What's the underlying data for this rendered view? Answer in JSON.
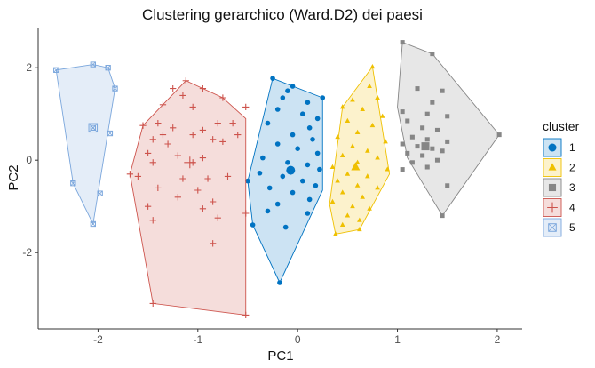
{
  "chart_data": {
    "type": "scatter",
    "title": "Clustering gerarchico (Ward.D2) dei paesi",
    "xlabel": "PC1",
    "ylabel": "PC2",
    "xlim": [
      -2.6,
      2.25
    ],
    "ylim": [
      -3.65,
      2.85
    ],
    "xticks": [
      -2,
      -1,
      0,
      1,
      2
    ],
    "yticks": [
      -2,
      0,
      2
    ],
    "xtick_labels": [
      "-2",
      "-1",
      "0",
      "1",
      "2"
    ],
    "ytick_labels": [
      "-2",
      "0",
      "2"
    ],
    "grid": false,
    "legend_title": "cluster",
    "legend_position": "right",
    "series": [
      {
        "name": "1",
        "shape": "circle",
        "color": "#0073C2",
        "fill": "#0073C2",
        "hull": [
          [
            -0.25,
            1.77
          ],
          [
            0.25,
            1.35
          ],
          [
            0.25,
            -0.65
          ],
          [
            -0.18,
            -2.65
          ],
          [
            -0.45,
            -1.4
          ],
          [
            -0.5,
            -0.45
          ]
        ],
        "centroid": [
          -0.07,
          -0.22
        ],
        "points": [
          [
            -0.25,
            1.77
          ],
          [
            0.25,
            1.35
          ],
          [
            -0.1,
            1.5
          ],
          [
            -0.05,
            1.6
          ],
          [
            -0.15,
            1.35
          ],
          [
            0.1,
            1.25
          ],
          [
            -0.2,
            1.1
          ],
          [
            0.05,
            1.0
          ],
          [
            0.2,
            0.9
          ],
          [
            -0.3,
            0.8
          ],
          [
            0.12,
            0.7
          ],
          [
            -0.05,
            0.55
          ],
          [
            0.15,
            0.45
          ],
          [
            -0.2,
            0.35
          ],
          [
            0.0,
            0.25
          ],
          [
            0.2,
            0.15
          ],
          [
            -0.35,
            0.05
          ],
          [
            -0.1,
            -0.05
          ],
          [
            0.1,
            -0.1
          ],
          [
            0.22,
            -0.2
          ],
          [
            -0.38,
            -0.28
          ],
          [
            -0.15,
            -0.35
          ],
          [
            0.05,
            -0.45
          ],
          [
            0.18,
            -0.55
          ],
          [
            -0.28,
            -0.6
          ],
          [
            -0.05,
            -0.7
          ],
          [
            0.12,
            -0.85
          ],
          [
            -0.2,
            -0.95
          ],
          [
            -0.3,
            -1.1
          ],
          [
            0.1,
            -1.15
          ],
          [
            -0.12,
            -1.45
          ],
          [
            -0.45,
            -1.4
          ],
          [
            -0.5,
            -0.45
          ],
          [
            -0.18,
            -2.65
          ]
        ]
      },
      {
        "name": "2",
        "shape": "triangle",
        "color": "#EFC000",
        "fill": "#EFC000",
        "hull": [
          [
            0.75,
            2.02
          ],
          [
            0.92,
            -0.3
          ],
          [
            0.62,
            -1.5
          ],
          [
            0.38,
            -1.6
          ],
          [
            0.32,
            -0.95
          ],
          [
            0.45,
            1.15
          ]
        ],
        "centroid": [
          0.58,
          -0.15
        ],
        "points": [
          [
            0.75,
            2.02
          ],
          [
            0.72,
            1.6
          ],
          [
            0.8,
            1.35
          ],
          [
            0.55,
            1.3
          ],
          [
            0.65,
            1.1
          ],
          [
            0.45,
            1.15
          ],
          [
            0.85,
            0.95
          ],
          [
            0.5,
            0.85
          ],
          [
            0.75,
            0.75
          ],
          [
            0.6,
            0.6
          ],
          [
            0.4,
            0.5
          ],
          [
            0.88,
            0.4
          ],
          [
            0.55,
            0.3
          ],
          [
            0.7,
            0.2
          ],
          [
            0.45,
            0.1
          ],
          [
            0.8,
            0.05
          ],
          [
            0.6,
            -0.05
          ],
          [
            0.35,
            -0.15
          ],
          [
            0.9,
            -0.2
          ],
          [
            0.5,
            -0.3
          ],
          [
            0.7,
            -0.35
          ],
          [
            0.4,
            -0.45
          ],
          [
            0.6,
            -0.55
          ],
          [
            0.8,
            -0.6
          ],
          [
            0.45,
            -0.7
          ],
          [
            0.65,
            -0.8
          ],
          [
            0.35,
            -0.9
          ],
          [
            0.55,
            -1.0
          ],
          [
            0.72,
            -1.05
          ],
          [
            0.5,
            -1.2
          ],
          [
            0.62,
            -1.3
          ],
          [
            0.45,
            -1.4
          ],
          [
            0.38,
            -1.6
          ],
          [
            0.62,
            -1.5
          ]
        ]
      },
      {
        "name": "3",
        "shape": "square",
        "color": "#868686",
        "fill": "#868686",
        "hull": [
          [
            1.05,
            2.55
          ],
          [
            1.35,
            2.3
          ],
          [
            2.02,
            0.55
          ],
          [
            1.45,
            -1.2
          ],
          [
            1.1,
            0.05
          ],
          [
            1.0,
            1.15
          ]
        ],
        "centroid": [
          1.28,
          0.3
        ],
        "points": [
          [
            1.05,
            2.55
          ],
          [
            1.35,
            2.3
          ],
          [
            1.2,
            1.55
          ],
          [
            1.45,
            1.5
          ],
          [
            1.35,
            1.25
          ],
          [
            1.05,
            1.05
          ],
          [
            1.3,
            1.0
          ],
          [
            1.5,
            0.95
          ],
          [
            1.1,
            0.85
          ],
          [
            1.25,
            0.7
          ],
          [
            1.4,
            0.65
          ],
          [
            1.15,
            0.5
          ],
          [
            1.3,
            0.45
          ],
          [
            1.5,
            0.4
          ],
          [
            1.05,
            0.35
          ],
          [
            1.2,
            0.3
          ],
          [
            1.35,
            0.25
          ],
          [
            1.45,
            0.2
          ],
          [
            1.1,
            0.15
          ],
          [
            1.25,
            0.1
          ],
          [
            1.4,
            0.0
          ],
          [
            1.15,
            -0.05
          ],
          [
            1.3,
            -0.15
          ],
          [
            1.05,
            -0.2
          ],
          [
            1.5,
            -0.55
          ],
          [
            1.45,
            -1.2
          ],
          [
            2.02,
            0.55
          ]
        ]
      },
      {
        "name": "4",
        "shape": "plus",
        "color": "#CD534C",
        "fill": "#CD534C",
        "hull": [
          [
            -1.12,
            1.72
          ],
          [
            -0.75,
            1.35
          ],
          [
            -0.52,
            0.9
          ],
          [
            -0.52,
            -3.35
          ],
          [
            -1.45,
            -3.1
          ],
          [
            -1.68,
            -0.3
          ],
          [
            -1.55,
            0.75
          ]
        ],
        "centroid": [
          -1.08,
          -0.05
        ],
        "points": [
          [
            -1.12,
            1.72
          ],
          [
            -1.25,
            1.55
          ],
          [
            -0.95,
            1.55
          ],
          [
            -1.15,
            1.4
          ],
          [
            -0.75,
            1.35
          ],
          [
            -1.35,
            1.2
          ],
          [
            -1.05,
            1.15
          ],
          [
            -0.52,
            1.15
          ],
          [
            -1.55,
            0.75
          ],
          [
            -1.4,
            0.8
          ],
          [
            -0.8,
            0.8
          ],
          [
            -0.65,
            0.8
          ],
          [
            -1.25,
            0.7
          ],
          [
            -0.95,
            0.65
          ],
          [
            -1.35,
            0.55
          ],
          [
            -1.05,
            0.55
          ],
          [
            -0.6,
            0.55
          ],
          [
            -0.85,
            0.45
          ],
          [
            -1.45,
            0.45
          ],
          [
            -1.3,
            0.35
          ],
          [
            -0.75,
            0.4
          ],
          [
            -1.5,
            0.15
          ],
          [
            -1.2,
            0.1
          ],
          [
            -0.95,
            0.05
          ],
          [
            -1.05,
            -0.05
          ],
          [
            -1.45,
            -0.05
          ],
          [
            -1.68,
            -0.3
          ],
          [
            -1.6,
            -0.35
          ],
          [
            -1.15,
            -0.4
          ],
          [
            -0.9,
            -0.4
          ],
          [
            -0.7,
            -0.35
          ],
          [
            -1.4,
            -0.6
          ],
          [
            -1.0,
            -0.65
          ],
          [
            -1.2,
            -0.8
          ],
          [
            -0.85,
            -0.9
          ],
          [
            -1.5,
            -1.0
          ],
          [
            -0.95,
            -1.05
          ],
          [
            -0.52,
            -1.15
          ],
          [
            -0.8,
            -1.25
          ],
          [
            -1.45,
            -1.3
          ],
          [
            -0.85,
            -1.8
          ],
          [
            -1.45,
            -3.1
          ],
          [
            -0.52,
            -3.35
          ]
        ]
      },
      {
        "name": "5",
        "shape": "square-cross",
        "color": "#7AA6DC",
        "fill": "#7AA6DC",
        "hull": [
          [
            -2.05,
            2.07
          ],
          [
            -1.9,
            2.0
          ],
          [
            -1.83,
            1.55
          ],
          [
            -2.05,
            -1.38
          ],
          [
            -2.25,
            -0.5
          ],
          [
            -2.42,
            1.95
          ]
        ],
        "centroid": [
          -2.05,
          0.7
        ],
        "points": [
          [
            -2.05,
            2.07
          ],
          [
            -1.9,
            2.0
          ],
          [
            -2.42,
            1.95
          ],
          [
            -1.83,
            1.55
          ],
          [
            -2.05,
            0.7
          ],
          [
            -1.88,
            0.58
          ],
          [
            -2.25,
            -0.5
          ],
          [
            -1.98,
            -0.72
          ],
          [
            -2.05,
            -1.38
          ]
        ]
      }
    ]
  }
}
